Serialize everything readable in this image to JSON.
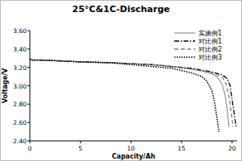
{
  "chart_data": {
    "type": "line",
    "title": "25°C&1C-Discharge",
    "x_label": "Capacity/Ah",
    "y_label": "Voltage/V",
    "xlim": [
      0,
      20.5
    ],
    "xticks": [
      0,
      5,
      10,
      15,
      20
    ],
    "ylim": [
      2.4,
      3.6
    ],
    "yticks": [
      {
        "value": 2.4,
        "label": "2.40"
      },
      {
        "value": 2.6,
        "label": "2.60"
      },
      {
        "value": 2.8,
        "label": "2.80"
      },
      {
        "value": 3.0,
        "label": "3.00"
      },
      {
        "value": 3.2,
        "label": "3.20"
      },
      {
        "value": 3.4,
        "label": "3.40"
      },
      {
        "value": 3.6,
        "label": "3.60"
      }
    ],
    "grid": false,
    "legend": "top-right",
    "series": [
      {
        "name": "实施例1",
        "color": "#9a9a9a",
        "line_style": "solid",
        "x": [
          0,
          0.2,
          1,
          3,
          5,
          8,
          10,
          12,
          14,
          16,
          17,
          18,
          18.5,
          19,
          19.3,
          19.5,
          19.7
        ],
        "values": [
          3.29,
          3.28,
          3.28,
          3.27,
          3.26,
          3.25,
          3.24,
          3.23,
          3.21,
          3.18,
          3.16,
          3.13,
          3.1,
          3.02,
          2.9,
          2.75,
          2.55
        ]
      },
      {
        "name": "对比例1",
        "color": "#000000",
        "line_style": "dashdot",
        "x": [
          0,
          0.2,
          1,
          3,
          5,
          8,
          10,
          12,
          14,
          16,
          17,
          18,
          19,
          19.5,
          19.8,
          20.0,
          20.2,
          20.4
        ],
        "values": [
          3.29,
          3.28,
          3.28,
          3.27,
          3.26,
          3.25,
          3.24,
          3.23,
          3.21,
          3.19,
          3.17,
          3.15,
          3.12,
          3.08,
          3.0,
          2.85,
          2.7,
          2.55
        ]
      },
      {
        "name": "对比例2",
        "color": "#808080",
        "line_style": "dashed",
        "x": [
          0,
          0.2,
          1,
          3,
          5,
          8,
          10,
          12,
          14,
          16,
          17,
          18,
          19,
          19.4,
          19.7,
          19.9,
          20.1
        ],
        "values": [
          3.29,
          3.28,
          3.28,
          3.27,
          3.26,
          3.25,
          3.24,
          3.23,
          3.21,
          3.18,
          3.16,
          3.14,
          3.1,
          3.02,
          2.88,
          2.72,
          2.55
        ]
      },
      {
        "name": "对比例3",
        "color": "#000000",
        "line_style": "dotted",
        "x": [
          0,
          0.2,
          1,
          3,
          5,
          8,
          10,
          12,
          14,
          16,
          17,
          17.5,
          18,
          18.3,
          18.5,
          18.7
        ],
        "values": [
          3.29,
          3.28,
          3.28,
          3.27,
          3.26,
          3.25,
          3.23,
          3.21,
          3.19,
          3.14,
          3.1,
          3.05,
          2.95,
          2.8,
          2.65,
          2.5
        ]
      }
    ]
  }
}
